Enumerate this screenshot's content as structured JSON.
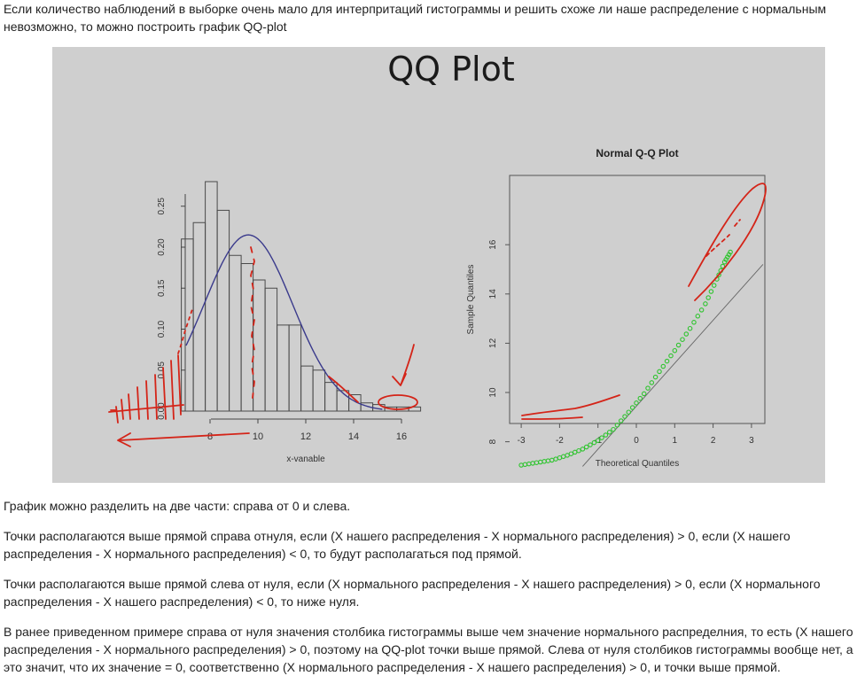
{
  "intro": "Если количество наблюдений в выборке очень мало для интерпритаций гистограммы и решить схоже ли наше распределение с нормальным невозможно, то можно построить график QQ-plot",
  "figure": {
    "slide_title": "QQ Plot",
    "histogram": {
      "xlabel": "x-vanable",
      "x_ticks": [
        "8",
        "10",
        "12",
        "14",
        "16"
      ],
      "y_ticks": [
        "0.00",
        "0.05",
        "0.10",
        "0.15",
        "0.20",
        "0.25"
      ]
    },
    "qqplot": {
      "title": "Normal Q-Q Plot",
      "xlabel": "Theoretical Quantiles",
      "ylabel": "Sample Quantiles",
      "x_ticks": [
        "-3",
        "-2",
        "-1",
        "0",
        "1",
        "2",
        "3"
      ],
      "y_ticks": [
        "8",
        "10",
        "12",
        "14",
        "16"
      ]
    },
    "colors": {
      "annotation": "#d42418",
      "density": "#3a3a8c",
      "points": "#2fc42f",
      "background": "#cfcfcf"
    }
  },
  "chart_data": [
    {
      "type": "bar",
      "xlabel": "x-vanable",
      "x": [
        6.3,
        6.8,
        7.3,
        7.8,
        8.3,
        8.8,
        9.3,
        9.8,
        10.3,
        10.8,
        11.3,
        11.8,
        12.3,
        12.8,
        13.3,
        13.8,
        14.3,
        14.8,
        15.3,
        15.8,
        16.3
      ],
      "values": [
        0.0,
        0.21,
        0.23,
        0.28,
        0.245,
        0.19,
        0.18,
        0.16,
        0.15,
        0.105,
        0.105,
        0.055,
        0.05,
        0.035,
        0.025,
        0.02,
        0.01,
        0.008,
        0.005,
        0.005,
        0.005
      ],
      "bin_width": 0.5,
      "xlim": [
        5.5,
        17
      ],
      "ylim": [
        0,
        0.27
      ],
      "density_curve": {
        "mean": 9.6,
        "peak": 0.215,
        "sd": 1.85
      }
    },
    {
      "type": "scatter",
      "title": "Normal Q-Q Plot",
      "xlabel": "Theoretical Quantiles",
      "ylabel": "Sample Quantiles",
      "xlim": [
        -3.3,
        3.3
      ],
      "ylim": [
        6.8,
        16.6
      ],
      "points": [
        [
          -3.0,
          7.05
        ],
        [
          -2.6,
          7.15
        ],
        [
          -2.2,
          7.25
        ],
        [
          -1.8,
          7.45
        ],
        [
          -1.4,
          7.7
        ],
        [
          -1.0,
          8.05
        ],
        [
          -0.6,
          8.5
        ],
        [
          -0.2,
          9.2
        ],
        [
          0.2,
          9.95
        ],
        [
          0.6,
          10.85
        ],
        [
          1.0,
          11.7
        ],
        [
          1.4,
          12.6
        ],
        [
          1.8,
          13.6
        ],
        [
          2.1,
          14.6
        ],
        [
          2.3,
          15.3
        ],
        [
          2.45,
          15.7
        ]
      ],
      "reference_line": [
        [
          -1.4,
          7.0
        ],
        [
          3.3,
          15.2
        ]
      ]
    }
  ],
  "paragraphs": [
    "График можно разделить на две части: справа от 0 и слева.",
    "Точки располагаются выше прямой справа отнуля, если (Х нашего распределения - Х нормального распределения) > 0, если (Х нашего распределения - Х нормального распределения) < 0, то будут располагаться под прямой.",
    "Точки располагаются выше прямой слева от нуля, если (Х нормального распределения - Х нашего распределения) > 0, если (Х нормального распределения - Х нашего распределения) < 0, то ниже нуля.",
    "В ранее приведенном примере справа от нуля значения столбика гистограммы выше чем значение нормального распределния, то есть (Х нашего распределения - Х нормального распределения) > 0, поэтому на QQ-plot точки выше прямой. Слева от нуля столбиков гистограммы вообще нет, а это значит, что их значение = 0, соответственно (Х нормального распределения - Х нашего распределения) > 0, и точки выше прямой."
  ]
}
